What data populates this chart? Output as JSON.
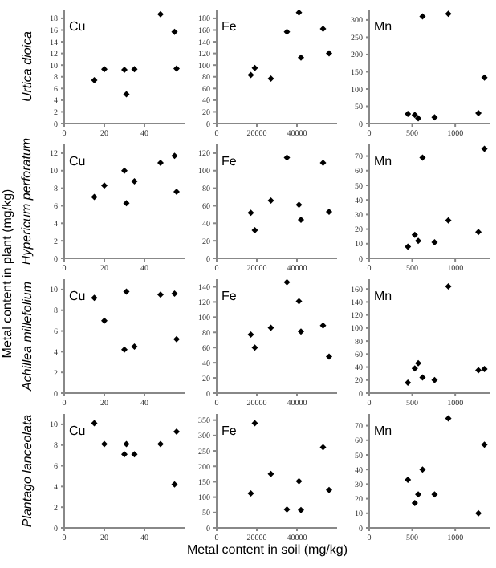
{
  "chart_data": [
    {
      "type": "scatter",
      "title": "Cu",
      "ylabel": "Urtica dioica",
      "x": [
        15,
        20,
        30,
        31,
        35,
        48,
        55,
        56
      ],
      "values": [
        7.4,
        9.3,
        9.2,
        5,
        9.3,
        18.7,
        15.7,
        9.4
      ],
      "color": "#000000",
      "marker": "diamond",
      "xlim": [
        0,
        60
      ],
      "xticks": [
        0,
        20,
        40
      ],
      "ylim": [
        0,
        19.5
      ],
      "yticks": [
        0,
        2,
        4,
        6,
        8,
        10,
        12,
        14,
        16,
        18
      ]
    },
    {
      "type": "scatter",
      "title": "Fe",
      "x": [
        17000,
        19000,
        27000,
        35000,
        41000,
        42000,
        53000,
        56000
      ],
      "values": [
        83,
        95,
        77,
        157,
        190,
        113,
        162,
        120
      ],
      "color": "#000000",
      "marker": "diamond",
      "xlim": [
        0,
        60000
      ],
      "xticks": [
        0,
        20000,
        40000
      ],
      "ylim": [
        0,
        195
      ],
      "yticks": [
        0,
        20,
        40,
        60,
        80,
        100,
        120,
        140,
        160,
        180
      ]
    },
    {
      "type": "scatter",
      "title": "Mn",
      "x": [
        450,
        530,
        570,
        620,
        760,
        920,
        1270,
        1340
      ],
      "values": [
        28,
        25,
        15,
        310,
        18,
        318,
        30,
        133
      ],
      "color": "#000000",
      "marker": "diamond",
      "xlim": [
        0,
        1400
      ],
      "xticks": [
        0,
        500,
        1000
      ],
      "ylim": [
        0,
        330
      ],
      "yticks": [
        0,
        50,
        100,
        150,
        200,
        250,
        300
      ]
    },
    {
      "type": "scatter",
      "title": "Cu",
      "ylabel": "Hypericum perforatum",
      "annotations": [
        "Metal content in plant (mg/kg)"
      ],
      "x": [
        15,
        20,
        30,
        31,
        35,
        48,
        55,
        56
      ],
      "values": [
        7,
        8.3,
        10,
        6.3,
        8.8,
        10.9,
        11.7,
        7.6
      ],
      "color": "#000000",
      "marker": "diamond",
      "xlim": [
        0,
        60
      ],
      "xticks": [
        0,
        20,
        40
      ],
      "ylim": [
        0,
        13
      ],
      "yticks": [
        0,
        2,
        4,
        6,
        8,
        10,
        12
      ]
    },
    {
      "type": "scatter",
      "title": "Fe",
      "x": [
        17000,
        19000,
        27000,
        35000,
        41000,
        42000,
        53000,
        56000
      ],
      "values": [
        52,
        32,
        66,
        115,
        61,
        44,
        109,
        53
      ],
      "color": "#000000",
      "marker": "diamond",
      "xlim": [
        0,
        60000
      ],
      "xticks": [
        0,
        20000,
        40000
      ],
      "ylim": [
        0,
        130
      ],
      "yticks": [
        0,
        20,
        40,
        60,
        80,
        100,
        120
      ]
    },
    {
      "type": "scatter",
      "title": "Mn",
      "x": [
        450,
        530,
        570,
        620,
        760,
        920,
        1270,
        1340
      ],
      "values": [
        8,
        16,
        12,
        69,
        11,
        26,
        18,
        75
      ],
      "color": "#000000",
      "marker": "diamond",
      "xlim": [
        0,
        1400
      ],
      "xticks": [
        0,
        500,
        1000
      ],
      "ylim": [
        0,
        78
      ],
      "yticks": [
        0,
        10,
        20,
        30,
        40,
        50,
        60,
        70
      ]
    },
    {
      "type": "scatter",
      "title": "Cu",
      "ylabel": "Achillea millefolium",
      "x": [
        15,
        20,
        30,
        31,
        35,
        48,
        55,
        56
      ],
      "values": [
        9.2,
        7,
        4.2,
        9.8,
        4.5,
        9.5,
        9.6,
        5.2
      ],
      "color": "#000000",
      "marker": "diamond",
      "xlim": [
        0,
        60
      ],
      "xticks": [
        0,
        20,
        40
      ],
      "ylim": [
        0,
        11
      ],
      "yticks": [
        0,
        2,
        4,
        6,
        8,
        10
      ]
    },
    {
      "type": "scatter",
      "title": "Fe",
      "x": [
        17000,
        19000,
        27000,
        35000,
        41000,
        42000,
        53000,
        56000
      ],
      "values": [
        77,
        60,
        86,
        146,
        121,
        81,
        89,
        48
      ],
      "color": "#000000",
      "marker": "diamond",
      "xlim": [
        0,
        60000
      ],
      "xticks": [
        0,
        20000,
        40000
      ],
      "ylim": [
        0,
        150
      ],
      "yticks": [
        0,
        20,
        40,
        60,
        80,
        100,
        120,
        140
      ]
    },
    {
      "type": "scatter",
      "title": "Mn",
      "x": [
        450,
        530,
        570,
        620,
        760,
        920,
        1270,
        1340
      ],
      "values": [
        16,
        38,
        46,
        24,
        20,
        164,
        35,
        37
      ],
      "color": "#000000",
      "marker": "diamond",
      "xlim": [
        0,
        1400
      ],
      "xticks": [
        0,
        500,
        1000
      ],
      "ylim": [
        0,
        175
      ],
      "yticks": [
        0,
        20,
        40,
        60,
        80,
        100,
        120,
        140,
        160
      ]
    },
    {
      "type": "scatter",
      "title": "Cu",
      "ylabel": "Plantago lanceolata",
      "x": [
        15,
        20,
        30,
        31,
        35,
        48,
        55,
        56
      ],
      "values": [
        10.1,
        8.1,
        7.1,
        8.1,
        7.1,
        8.1,
        4.2,
        9.3
      ],
      "color": "#000000",
      "marker": "diamond",
      "xlim": [
        0,
        60
      ],
      "xticks": [
        0,
        20,
        40
      ],
      "ylim": [
        0,
        11
      ],
      "yticks": [
        0,
        2,
        4,
        6,
        8,
        10
      ]
    },
    {
      "type": "scatter",
      "title": "Fe",
      "xlabel": "Metal content in soil (mg/kg)",
      "x": [
        17000,
        19000,
        27000,
        35000,
        41000,
        42000,
        53000,
        56000
      ],
      "values": [
        112,
        340,
        175,
        60,
        152,
        58,
        262,
        123
      ],
      "color": "#000000",
      "marker": "diamond",
      "xlim": [
        0,
        60000
      ],
      "xticks": [
        0,
        20000,
        40000
      ],
      "ylim": [
        0,
        370
      ],
      "yticks": [
        0,
        50,
        100,
        150,
        200,
        250,
        300,
        350
      ]
    },
    {
      "type": "scatter",
      "title": "Mn",
      "x": [
        450,
        530,
        570,
        620,
        760,
        920,
        1270,
        1340
      ],
      "values": [
        33,
        17,
        23,
        40,
        23,
        75,
        10,
        57
      ],
      "color": "#000000",
      "marker": "diamond",
      "xlim": [
        0,
        1400
      ],
      "xticks": [
        0,
        500,
        1000
      ],
      "ylim": [
        0,
        78
      ],
      "yticks": [
        0,
        10,
        20,
        30,
        40,
        50,
        60,
        70
      ]
    }
  ]
}
